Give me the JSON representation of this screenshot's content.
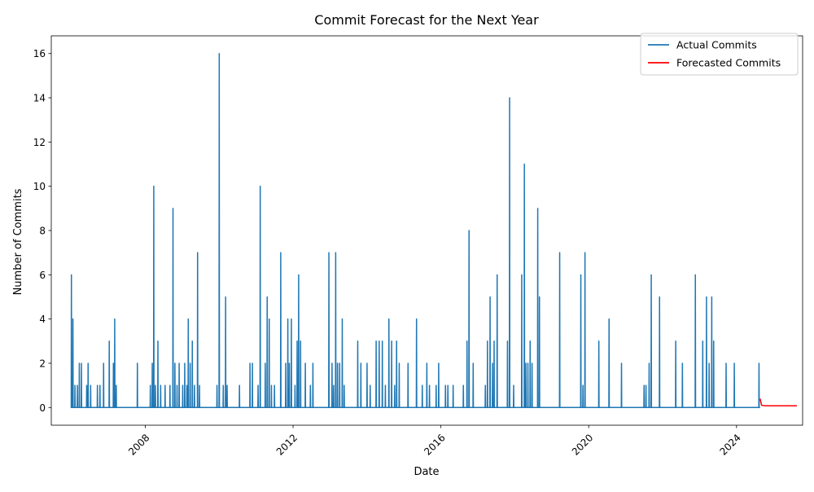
{
  "chart_data": {
    "type": "line",
    "title": "Commit Forecast for the Next Year",
    "xlabel": "Date",
    "ylabel": "Number of Commits",
    "xlim": [
      "2005-06-16",
      "2025-10-15"
    ],
    "ylim": [
      -0.8,
      16.8
    ],
    "x_ticks": [
      {
        "date": "2008-01-01",
        "label": "2008"
      },
      {
        "date": "2012-01-01",
        "label": "2012"
      },
      {
        "date": "2016-01-01",
        "label": "2016"
      },
      {
        "date": "2020-01-01",
        "label": "2020"
      },
      {
        "date": "2024-01-01",
        "label": "2024"
      }
    ],
    "y_ticks": [
      0,
      2,
      4,
      6,
      8,
      10,
      12,
      14,
      16
    ],
    "legend": {
      "position": "top-right",
      "entries": [
        "Actual Commits",
        "Forecasted Commits"
      ]
    },
    "grid": false,
    "colors": {
      "actual": "#1f77b4",
      "forecast": "#ff0000"
    },
    "series": [
      {
        "name": "Actual Commits",
        "color": "#1f77b4",
        "baseline": 0,
        "start": "2006-01-01",
        "end": "2024-08-20",
        "spikes": [
          [
            "2006-01-01",
            6
          ],
          [
            "2006-01-16",
            4
          ],
          [
            "2006-02-05",
            1
          ],
          [
            "2006-03-01",
            1
          ],
          [
            "2006-03-20",
            2
          ],
          [
            "2006-04-10",
            2
          ],
          [
            "2006-06-01",
            1
          ],
          [
            "2006-06-15",
            2
          ],
          [
            "2006-07-10",
            1
          ],
          [
            "2006-09-15",
            1
          ],
          [
            "2006-10-10",
            1
          ],
          [
            "2006-11-15",
            2
          ],
          [
            "2007-01-10",
            3
          ],
          [
            "2007-02-20",
            2
          ],
          [
            "2007-03-05",
            4
          ],
          [
            "2007-03-20",
            1
          ],
          [
            "2007-10-15",
            2
          ],
          [
            "2008-02-20",
            1
          ],
          [
            "2008-03-10",
            2
          ],
          [
            "2008-03-25",
            10
          ],
          [
            "2008-04-10",
            1
          ],
          [
            "2008-05-05",
            3
          ],
          [
            "2008-06-01",
            1
          ],
          [
            "2008-07-15",
            1
          ],
          [
            "2008-09-01",
            1
          ],
          [
            "2008-10-01",
            9
          ],
          [
            "2008-10-20",
            2
          ],
          [
            "2008-11-10",
            1
          ],
          [
            "2008-12-01",
            2
          ],
          [
            "2009-01-05",
            1
          ],
          [
            "2009-01-25",
            2
          ],
          [
            "2009-02-15",
            1
          ],
          [
            "2009-03-01",
            4
          ],
          [
            "2009-03-20",
            2
          ],
          [
            "2009-04-10",
            3
          ],
          [
            "2009-05-01",
            1
          ],
          [
            "2009-06-01",
            7
          ],
          [
            "2009-06-20",
            1
          ],
          [
            "2009-12-10",
            1
          ],
          [
            "2010-01-01",
            16
          ],
          [
            "2010-02-10",
            1
          ],
          [
            "2010-03-05",
            5
          ],
          [
            "2010-03-20",
            1
          ],
          [
            "2010-07-20",
            1
          ],
          [
            "2010-11-01",
            2
          ],
          [
            "2010-11-25",
            2
          ],
          [
            "2011-01-20",
            1
          ],
          [
            "2011-02-10",
            10
          ],
          [
            "2011-04-01",
            2
          ],
          [
            "2011-04-20",
            5
          ],
          [
            "2011-05-10",
            4
          ],
          [
            "2011-06-01",
            1
          ],
          [
            "2011-07-01",
            1
          ],
          [
            "2011-09-01",
            7
          ],
          [
            "2011-10-20",
            2
          ],
          [
            "2011-11-10",
            4
          ],
          [
            "2011-11-25",
            2
          ],
          [
            "2011-12-15",
            4
          ],
          [
            "2012-01-20",
            1
          ],
          [
            "2012-02-10",
            3
          ],
          [
            "2012-02-25",
            6
          ],
          [
            "2012-03-15",
            3
          ],
          [
            "2012-05-01",
            2
          ],
          [
            "2012-06-20",
            1
          ],
          [
            "2012-07-15",
            2
          ],
          [
            "2012-12-20",
            7
          ],
          [
            "2013-01-20",
            2
          ],
          [
            "2013-02-05",
            1
          ],
          [
            "2013-02-25",
            7
          ],
          [
            "2013-03-15",
            2
          ],
          [
            "2013-04-05",
            2
          ],
          [
            "2013-05-01",
            4
          ],
          [
            "2013-05-20",
            1
          ],
          [
            "2013-10-01",
            3
          ],
          [
            "2013-11-01",
            2
          ],
          [
            "2014-01-01",
            2
          ],
          [
            "2014-02-01",
            1
          ],
          [
            "2014-04-01",
            3
          ],
          [
            "2014-05-01",
            3
          ],
          [
            "2014-06-01",
            3
          ],
          [
            "2014-07-01",
            1
          ],
          [
            "2014-08-05",
            4
          ],
          [
            "2014-09-01",
            3
          ],
          [
            "2014-10-01",
            1
          ],
          [
            "2014-10-20",
            3
          ],
          [
            "2014-11-15",
            2
          ],
          [
            "2015-02-10",
            2
          ],
          [
            "2015-05-05",
            4
          ],
          [
            "2015-07-01",
            1
          ],
          [
            "2015-08-15",
            2
          ],
          [
            "2015-09-10",
            1
          ],
          [
            "2015-11-15",
            1
          ],
          [
            "2015-12-10",
            2
          ],
          [
            "2016-02-15",
            1
          ],
          [
            "2016-03-10",
            1
          ],
          [
            "2016-05-01",
            1
          ],
          [
            "2016-08-10",
            1
          ],
          [
            "2016-09-15",
            3
          ],
          [
            "2016-10-05",
            8
          ],
          [
            "2016-11-15",
            2
          ],
          [
            "2017-03-15",
            1
          ],
          [
            "2017-04-05",
            3
          ],
          [
            "2017-05-01",
            5
          ],
          [
            "2017-05-25",
            2
          ],
          [
            "2017-06-10",
            3
          ],
          [
            "2017-07-10",
            6
          ],
          [
            "2017-10-20",
            3
          ],
          [
            "2017-11-10",
            14
          ],
          [
            "2017-12-20",
            1
          ],
          [
            "2018-03-10",
            6
          ],
          [
            "2018-04-05",
            11
          ],
          [
            "2018-04-20",
            2
          ],
          [
            "2018-05-10",
            2
          ],
          [
            "2018-06-01",
            3
          ],
          [
            "2018-06-20",
            2
          ],
          [
            "2018-08-15",
            9
          ],
          [
            "2018-09-01",
            5
          ],
          [
            "2019-03-20",
            7
          ],
          [
            "2019-10-15",
            6
          ],
          [
            "2019-11-05",
            1
          ],
          [
            "2019-11-25",
            7
          ],
          [
            "2020-04-10",
            3
          ],
          [
            "2020-07-20",
            4
          ],
          [
            "2020-11-20",
            2
          ],
          [
            "2021-07-01",
            1
          ],
          [
            "2021-07-20",
            1
          ],
          [
            "2021-08-20",
            2
          ],
          [
            "2021-09-10",
            6
          ],
          [
            "2021-12-01",
            5
          ],
          [
            "2022-05-10",
            3
          ],
          [
            "2022-07-15",
            2
          ],
          [
            "2022-11-20",
            6
          ],
          [
            "2023-02-01",
            3
          ],
          [
            "2023-03-10",
            5
          ],
          [
            "2023-04-05",
            2
          ],
          [
            "2023-05-01",
            5
          ],
          [
            "2023-05-20",
            3
          ],
          [
            "2023-09-20",
            2
          ],
          [
            "2023-12-10",
            2
          ],
          [
            "2024-08-10",
            2
          ]
        ]
      },
      {
        "name": "Forecasted Commits",
        "color": "#ff0000",
        "points": [
          [
            "2024-08-21",
            0.4
          ],
          [
            "2024-09-05",
            0.1
          ],
          [
            "2024-10-15",
            0.08
          ],
          [
            "2025-01-01",
            0.08
          ],
          [
            "2025-05-01",
            0.08
          ],
          [
            "2025-08-20",
            0.08
          ]
        ]
      }
    ]
  }
}
